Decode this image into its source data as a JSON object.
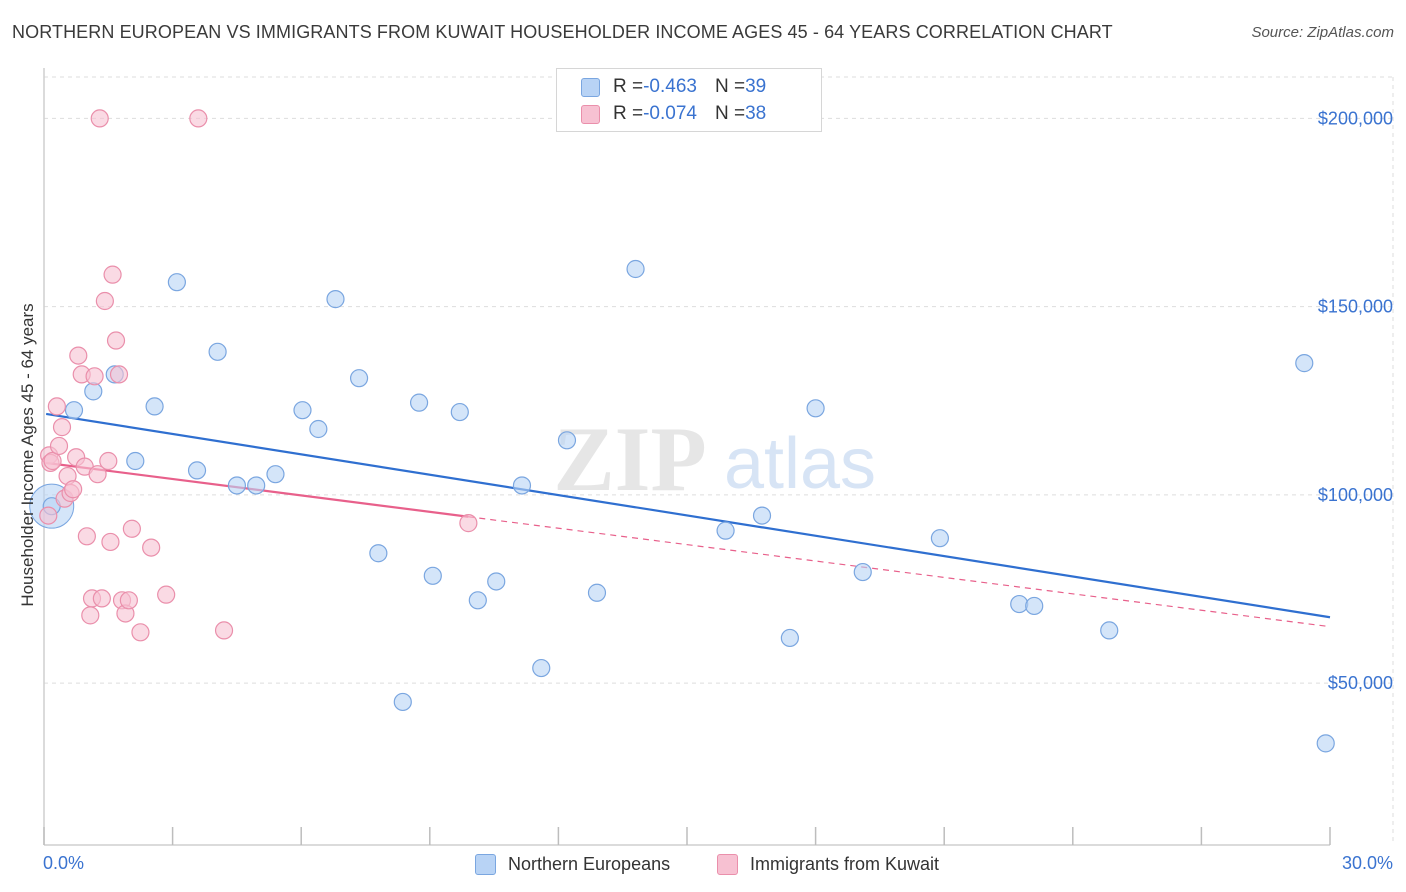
{
  "title": "NORTHERN EUROPEAN VS IMMIGRANTS FROM KUWAIT HOUSEHOLDER INCOME AGES 45 - 64 YEARS CORRELATION CHART",
  "source": "Source: ZipAtlas.com",
  "watermark": {
    "zip": "ZIP",
    "atlas": "atlas"
  },
  "legend": {
    "rows": [
      {
        "r_label": "R = ",
        "r_value": "-0.463",
        "n_label": "N = ",
        "n_value": "39"
      },
      {
        "r_label": "R = ",
        "r_value": "-0.074",
        "n_label": "N = ",
        "n_value": "38"
      }
    ]
  },
  "colors": {
    "blue_fill": "#b8d3f5",
    "blue_stroke": "#7aa6e0",
    "blue_line": "#2f6fd0",
    "pink_fill": "#f7c1d2",
    "pink_stroke": "#ea8fab",
    "pink_line": "#e8608b",
    "grid": "#dddddd",
    "axis_label": "#3a73d0"
  },
  "chart_data": {
    "type": "scatter",
    "xlabel": "",
    "ylabel": "Householder Income Ages 45 - 64 years",
    "xlim": [
      0,
      30
    ],
    "ylim": [
      7000,
      211000
    ],
    "x_tick_labels": [
      "0.0%",
      "30.0%"
    ],
    "y_ticks": [
      50000,
      100000,
      150000,
      200000
    ],
    "y_tick_labels": [
      "$50,000",
      "$100,000",
      "$150,000",
      "$200,000"
    ],
    "grid": true,
    "legend_position": "top-center",
    "series": [
      {
        "name": "Northern Europeans",
        "color": "blue",
        "trend": {
          "x": [
            0.05,
            30.0
          ],
          "y": [
            121500,
            67500
          ],
          "solid_to": 30.0
        },
        "points": [
          [
            0.18,
            97000
          ],
          [
            0.7,
            122500
          ],
          [
            1.15,
            127500
          ],
          [
            1.65,
            132000
          ],
          [
            2.13,
            109000
          ],
          [
            2.58,
            123500
          ],
          [
            3.1,
            156500
          ],
          [
            3.57,
            106500
          ],
          [
            4.05,
            138000
          ],
          [
            4.5,
            102500
          ],
          [
            4.95,
            102500
          ],
          [
            5.4,
            105500
          ],
          [
            6.03,
            122500
          ],
          [
            6.4,
            117500
          ],
          [
            6.8,
            152000
          ],
          [
            7.35,
            131000
          ],
          [
            7.8,
            84500
          ],
          [
            8.37,
            45000
          ],
          [
            8.75,
            124500
          ],
          [
            9.07,
            78500
          ],
          [
            9.7,
            122000
          ],
          [
            10.12,
            72000
          ],
          [
            10.55,
            77000
          ],
          [
            11.15,
            102500
          ],
          [
            11.6,
            54000
          ],
          [
            12.2,
            114500
          ],
          [
            12.9,
            74000
          ],
          [
            13.8,
            160000
          ],
          [
            15.9,
            90500
          ],
          [
            16.75,
            94500
          ],
          [
            17.4,
            62000
          ],
          [
            18.0,
            123000
          ],
          [
            19.1,
            79500
          ],
          [
            20.9,
            88500
          ],
          [
            22.75,
            71000
          ],
          [
            23.1,
            70500
          ],
          [
            24.85,
            64000
          ],
          [
            29.4,
            135000
          ],
          [
            29.9,
            34000
          ]
        ]
      },
      {
        "name": "Immigrants from Kuwait",
        "color": "pink",
        "trend": {
          "x": [
            0.05,
            30.0
          ],
          "y": [
            108500,
            65000
          ],
          "solid_to": 9.9
        },
        "points": [
          [
            0.1,
            94500
          ],
          [
            0.12,
            110500
          ],
          [
            0.15,
            108500
          ],
          [
            0.2,
            109000
          ],
          [
            0.3,
            123500
          ],
          [
            0.35,
            113000
          ],
          [
            0.42,
            118000
          ],
          [
            0.48,
            99000
          ],
          [
            0.55,
            105000
          ],
          [
            0.62,
            100500
          ],
          [
            0.68,
            101500
          ],
          [
            0.75,
            110000
          ],
          [
            0.8,
            137000
          ],
          [
            0.88,
            132000
          ],
          [
            0.95,
            107500
          ],
          [
            1.0,
            89000
          ],
          [
            1.08,
            68000
          ],
          [
            1.12,
            72500
          ],
          [
            1.18,
            131500
          ],
          [
            1.25,
            105500
          ],
          [
            1.3,
            200000
          ],
          [
            1.35,
            72500
          ],
          [
            1.42,
            151500
          ],
          [
            1.5,
            109000
          ],
          [
            1.55,
            87500
          ],
          [
            1.6,
            158500
          ],
          [
            1.68,
            141000
          ],
          [
            1.75,
            132000
          ],
          [
            1.82,
            72000
          ],
          [
            1.9,
            68500
          ],
          [
            1.98,
            72000
          ],
          [
            2.05,
            91000
          ],
          [
            2.25,
            63500
          ],
          [
            2.5,
            86000
          ],
          [
            2.85,
            73500
          ],
          [
            3.6,
            200000
          ],
          [
            4.2,
            64000
          ],
          [
            9.9,
            92500
          ]
        ]
      }
    ]
  }
}
